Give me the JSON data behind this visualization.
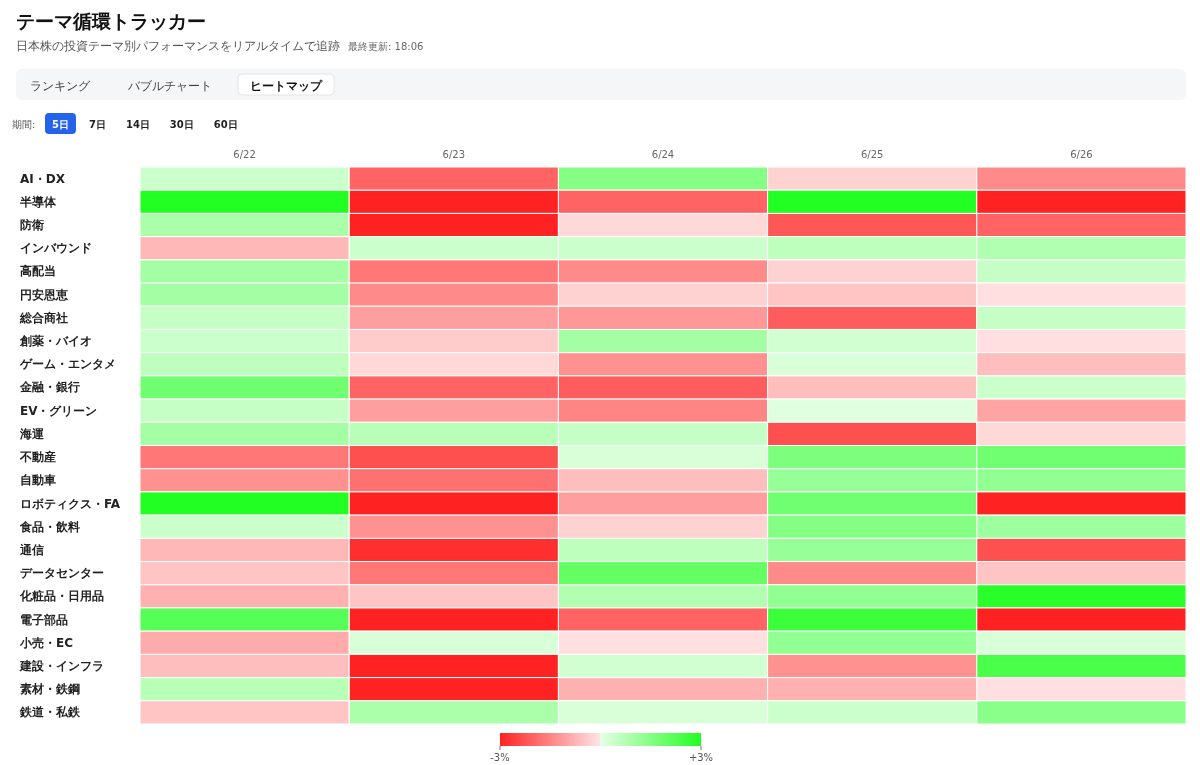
{
  "chart_data": {
    "type": "heatmap",
    "title": "テーマ循環トラッカー",
    "subtitle": "日本株の投資テーマ別パフォーマンスをリアルタイムで追跡",
    "annotations": [
      "最終更新: 18:06",
      "ランキング",
      "バブルチャート",
      "ヒートマップ",
      "期間:",
      "5日",
      "7日",
      "14日",
      "30日",
      "60日"
    ],
    "categories": [
      "6/22",
      "6/23",
      "6/24",
      "6/25",
      "6/26"
    ],
    "y_categories": [
      "AI・DX",
      "半導体",
      "防衛",
      "インバウンド",
      "高配当",
      "円安恩恵",
      "総合商社",
      "創薬・バイオ",
      "ゲーム・エンタメ",
      "金融・銀行",
      "EV・グリーン",
      "海運",
      "不動産",
      "自動車",
      "ロボティクス・FA",
      "食品・飲料",
      "通信",
      "データセンター",
      "化粧品・日用品",
      "電子部品",
      "小売・EC",
      "建設・インフラ",
      "素材・鉄鋼",
      "鉄道・私鉄"
    ],
    "cells": [
      [
        0.4,
        -2.0,
        1.5,
        -0.3,
        -1.4
      ],
      [
        3.0,
        -3.0,
        -2.0,
        3.0,
        -3.0
      ],
      [
        0.9,
        -3.0,
        -0.2,
        -2.2,
        -2.0
      ],
      [
        -0.7,
        0.4,
        0.4,
        0.6,
        0.8
      ],
      [
        1.0,
        -1.7,
        -1.4,
        -0.3,
        0.5
      ],
      [
        1.0,
        -1.4,
        -0.3,
        -0.5,
        -0.1
      ],
      [
        0.5,
        -1.1,
        -1.2,
        -2.1,
        0.5
      ],
      [
        0.4,
        -0.4,
        1.0,
        0.3,
        -0.1
      ],
      [
        0.6,
        -0.2,
        -1.3,
        0.2,
        -0.6
      ],
      [
        1.8,
        -2.0,
        -2.1,
        -0.6,
        0.4
      ],
      [
        0.5,
        -1.1,
        -1.5,
        0.1,
        -1.0
      ],
      [
        1.0,
        0.7,
        0.5,
        -2.3,
        -0.2
      ],
      [
        -1.7,
        -2.3,
        0.2,
        1.6,
        1.8
      ],
      [
        -1.3,
        -1.8,
        -0.6,
        1.2,
        1.3
      ],
      [
        3.0,
        -3.0,
        -1.1,
        1.8,
        -3.0
      ],
      [
        0.4,
        -1.3,
        -0.3,
        1.5,
        1.1
      ],
      [
        -0.7,
        -2.8,
        0.6,
        1.2,
        -2.3
      ],
      [
        -0.5,
        -1.7,
        2.0,
        -1.4,
        -0.5
      ],
      [
        -0.8,
        -0.5,
        0.8,
        1.3,
        2.9
      ],
      [
        2.2,
        -3.0,
        -2.0,
        2.6,
        -3.0
      ],
      [
        -0.9,
        0.2,
        -0.1,
        1.3,
        0.2
      ],
      [
        -0.6,
        -3.0,
        0.3,
        -1.3,
        2.4
      ],
      [
        0.7,
        -3.0,
        -0.8,
        -0.8,
        -0.1
      ],
      [
        -0.5,
        0.9,
        0.2,
        0.4,
        1.4
      ]
    ],
    "clim": [
      -3,
      3
    ],
    "cticks": [
      {
        "value": -3,
        "label": "-3%"
      },
      {
        "value": 3,
        "label": "+3%"
      }
    ]
  }
}
